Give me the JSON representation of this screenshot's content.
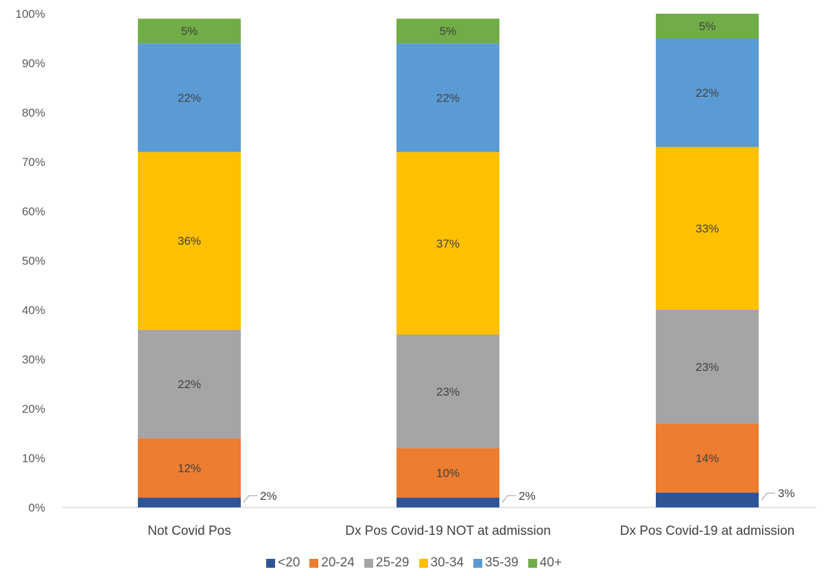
{
  "chart_data": {
    "type": "bar",
    "stacked": true,
    "categories": [
      "Not Covid Pos",
      "Dx Pos Covid-19 NOT at admission",
      "Dx Pos Covid-19 at admission"
    ],
    "series": [
      {
        "name": "<20",
        "color": "#2f5597",
        "values": [
          2,
          2,
          3
        ],
        "labels": [
          "2%",
          "2%",
          "3%"
        ]
      },
      {
        "name": "20-24",
        "color": "#ed7d31",
        "values": [
          12,
          10,
          14
        ],
        "labels": [
          "12%",
          "10%",
          "14%"
        ]
      },
      {
        "name": "25-29",
        "color": "#a5a5a5",
        "values": [
          22,
          23,
          23
        ],
        "labels": [
          "22%",
          "23%",
          "23%"
        ]
      },
      {
        "name": "30-34",
        "color": "#ffc000",
        "values": [
          36,
          37,
          33
        ],
        "labels": [
          "36%",
          "37%",
          "33%"
        ]
      },
      {
        "name": "35-39",
        "color": "#5b9bd5",
        "values": [
          22,
          22,
          22
        ],
        "labels": [
          "22%",
          "22%",
          "22%"
        ]
      },
      {
        "name": "40+",
        "color": "#70ad47",
        "values": [
          5,
          5,
          5
        ],
        "labels": [
          "5%",
          "5%",
          "5%"
        ]
      }
    ],
    "yticks": [
      "0%",
      "10%",
      "20%",
      "30%",
      "40%",
      "50%",
      "60%",
      "70%",
      "80%",
      "90%",
      "100%"
    ],
    "ylim": [
      0,
      100
    ],
    "xlabel": "",
    "ylabel": "",
    "title": "",
    "legend": "bottom",
    "grid": false
  }
}
